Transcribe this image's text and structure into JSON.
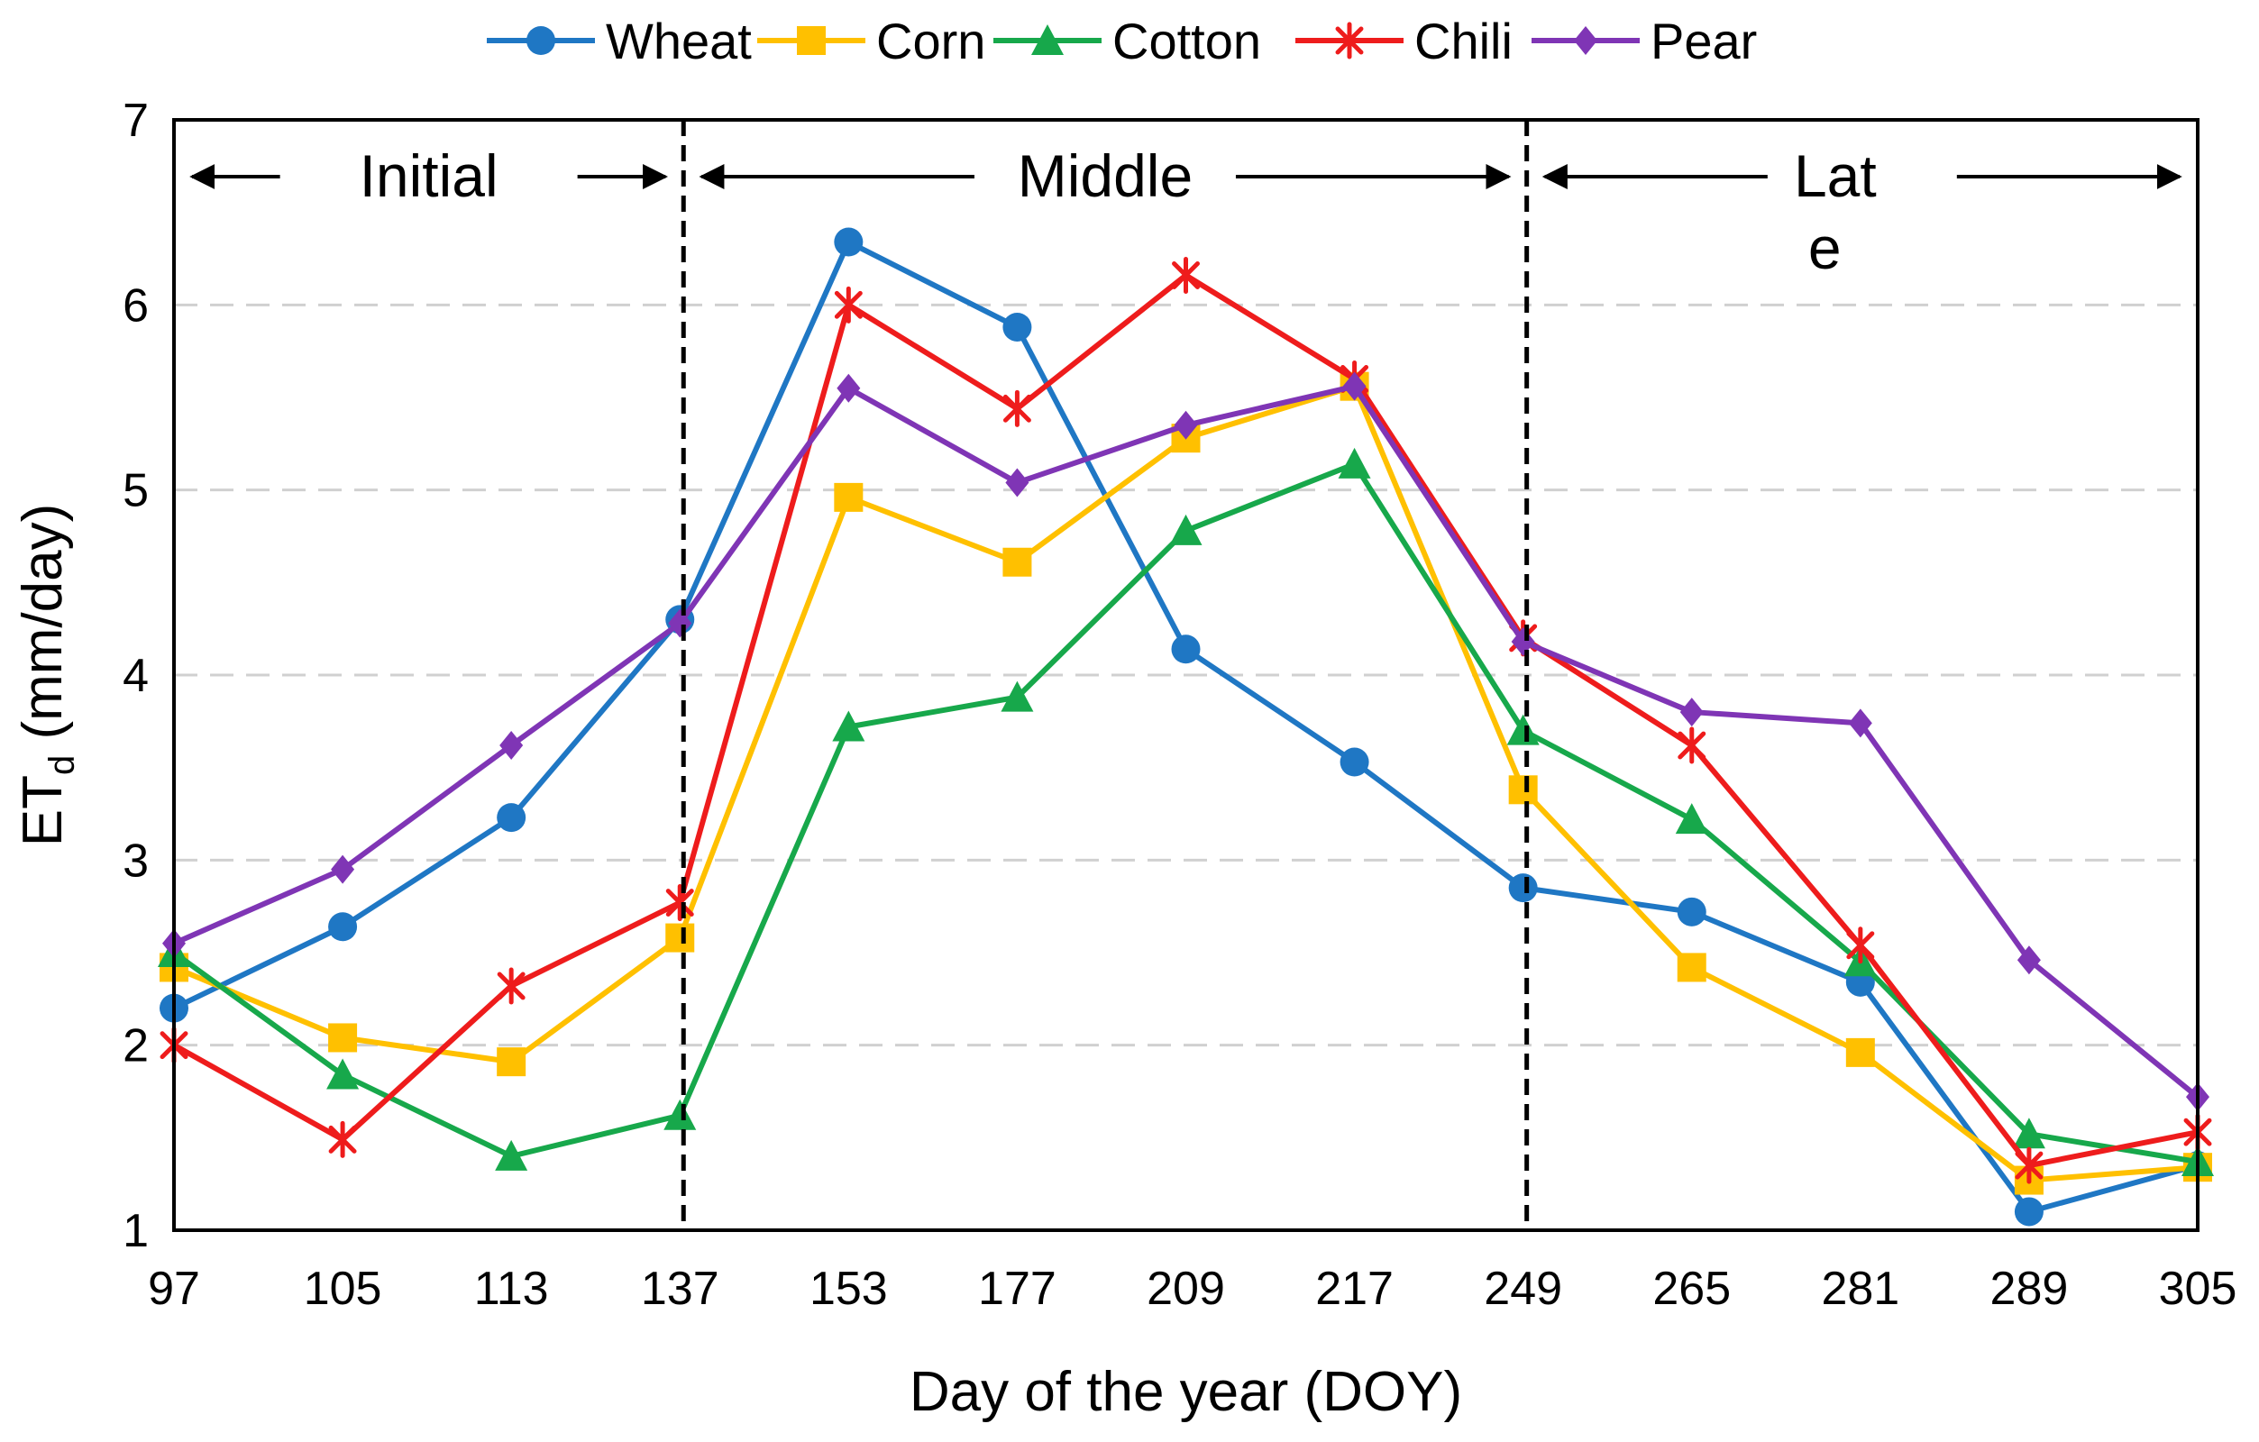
{
  "chart_data": {
    "type": "line",
    "title": "",
    "xlabel": "Day of the year (DOY)",
    "ylabel_main": "ET",
    "ylabel_sub": "d",
    "ylabel_units": " (mm/day)",
    "ylim": [
      1,
      7
    ],
    "yticks": [
      "1",
      "2",
      "3",
      "4",
      "5",
      "6",
      "7"
    ],
    "grid": "horizontal dashed",
    "legend_position": "top",
    "categories": [
      "97",
      "105",
      "113",
      "137",
      "153",
      "177",
      "209",
      "217",
      "249",
      "265",
      "281",
      "289",
      "305"
    ],
    "series": [
      {
        "name": "Wheat",
        "color": "#1f77c4",
        "marker": "circle",
        "values": [
          2.2,
          2.64,
          3.23,
          4.3,
          6.34,
          5.88,
          4.14,
          3.53,
          2.85,
          2.72,
          2.34,
          1.1,
          1.35
        ]
      },
      {
        "name": "Corn",
        "color": "#ffc000",
        "marker": "square",
        "values": [
          2.42,
          2.04,
          1.91,
          2.58,
          4.96,
          4.61,
          5.28,
          5.56,
          3.38,
          2.42,
          1.96,
          1.27,
          1.34
        ]
      },
      {
        "name": "Cotton",
        "color": "#17a84b",
        "marker": "triangle",
        "values": [
          2.5,
          1.84,
          1.4,
          1.62,
          3.72,
          3.88,
          4.78,
          5.14,
          3.7,
          3.22,
          2.45,
          1.52,
          1.37
        ]
      },
      {
        "name": "Chili",
        "color": "#ee1c1c",
        "marker": "asterisk",
        "values": [
          2.0,
          1.49,
          2.32,
          2.77,
          6.0,
          5.44,
          6.16,
          5.6,
          4.2,
          3.62,
          2.54,
          1.35,
          1.53
        ]
      },
      {
        "name": "Pear",
        "color": "#7f35b5",
        "marker": "diamond",
        "values": [
          2.55,
          2.95,
          3.62,
          4.28,
          5.55,
          5.04,
          5.35,
          5.56,
          4.18,
          3.8,
          3.74,
          2.46,
          1.72
        ]
      }
    ],
    "phases": [
      {
        "name": "Initial",
        "label_lines": [
          "Initial"
        ]
      },
      {
        "name": "Middle",
        "label_lines": [
          "Middle"
        ]
      },
      {
        "name": "Late",
        "label_lines": [
          "Lat",
          "e"
        ]
      }
    ],
    "phase_dividers_after_category": [
      "137",
      "249"
    ]
  }
}
